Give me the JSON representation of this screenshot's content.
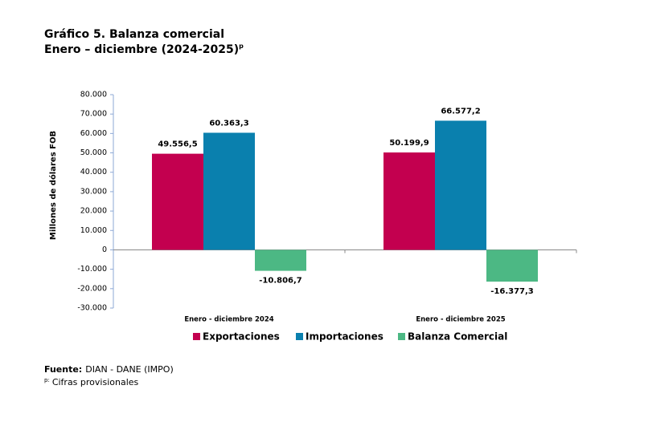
{
  "chart_data": {
    "type": "bar",
    "title": "Gráfico 5. Balanza comercial",
    "subtitle": "Enero – diciembre (2024-2025)",
    "subtitle_mark": "p",
    "y_axis_label": "Millones de dólares FOB",
    "categories": [
      "Enero - diciembre 2024",
      "Enero - diciembre 2025"
    ],
    "series": [
      {
        "name": "Exportaciones",
        "color": "#c3004f",
        "values": [
          49556.5,
          50199.9
        ],
        "value_labels": [
          "49.556,5",
          "50.199,9"
        ]
      },
      {
        "name": "Importaciones",
        "color": "#0a80ae",
        "values": [
          60363.3,
          66577.2
        ],
        "value_labels": [
          "60.363,3",
          "66.577,2"
        ]
      },
      {
        "name": "Balanza Comercial",
        "color": "#4cb884",
        "values": [
          -10806.7,
          -16377.3
        ],
        "value_labels": [
          "-10.806,7",
          "-16.377,3"
        ]
      }
    ],
    "ylim": [
      -30000,
      80000
    ],
    "yticks": [
      {
        "value": -30000,
        "label": "-30.000"
      },
      {
        "value": -20000,
        "label": "-20.000"
      },
      {
        "value": -10000,
        "label": "-10.000"
      },
      0,
      {
        "value": 10000,
        "label": "10.000"
      },
      {
        "value": 20000,
        "label": "20.000"
      },
      {
        "value": 30000,
        "label": "30.000"
      },
      {
        "value": 40000,
        "label": "40.000"
      },
      {
        "value": 50000,
        "label": "50.000"
      },
      {
        "value": 60000,
        "label": "60.000"
      },
      {
        "value": 70000,
        "label": "70.000"
      },
      {
        "value": 80000,
        "label": "80.000"
      }
    ],
    "grid": false,
    "legend": "bottom",
    "source_label": "Fuente:",
    "source": "DIAN - DANE (IMPO)",
    "note_mark": "p:",
    "note": "Cifras provisionales"
  }
}
